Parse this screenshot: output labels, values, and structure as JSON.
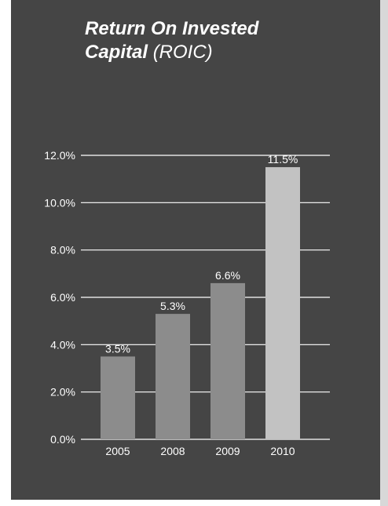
{
  "chart_data": {
    "type": "bar",
    "title": "Return On Invested",
    "title_line2": "Capital",
    "subtitle": "(ROIC)",
    "categories": [
      "2005",
      "2008",
      "2009",
      "2010"
    ],
    "values": [
      3.5,
      5.3,
      6.6,
      11.5
    ],
    "data_labels": [
      "3.5%",
      "5.3%",
      "6.6%",
      "11.5%"
    ],
    "y_ticks": [
      "0.0%",
      "2.0%",
      "4.0%",
      "6.0%",
      "8.0%",
      "10.0%",
      "12.0%"
    ],
    "ylim": [
      0,
      12
    ],
    "grid": true,
    "xlabel": "",
    "ylabel": "",
    "colors": {
      "background": "#454545",
      "bar": "#8c8c8c",
      "bar_highlight": "#c2c2c2",
      "grid": "#ffffff",
      "text": "#ffffff"
    }
  }
}
